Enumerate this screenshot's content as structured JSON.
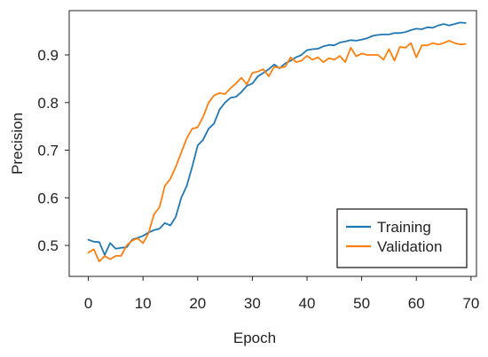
{
  "chart_data": {
    "type": "line",
    "title": "",
    "xlabel": "Epoch",
    "ylabel": "Precision",
    "xlim": [
      -3.5,
      71
    ],
    "ylim": [
      0.435,
      0.993
    ],
    "xticks": [
      0,
      10,
      20,
      30,
      40,
      50,
      60,
      70
    ],
    "yticks": [
      0.5,
      0.6,
      0.7,
      0.8,
      0.9
    ],
    "xtick_labels": [
      "0",
      "10",
      "20",
      "30",
      "40",
      "50",
      "60",
      "70"
    ],
    "ytick_labels": [
      "0.5",
      "0.6",
      "0.7",
      "0.8",
      "0.9"
    ],
    "grid": false,
    "legend_position": "lower-right",
    "x": [
      0,
      1,
      2,
      3,
      4,
      5,
      6,
      7,
      8,
      9,
      10,
      11,
      12,
      13,
      14,
      15,
      16,
      17,
      18,
      19,
      20,
      21,
      22,
      23,
      24,
      25,
      26,
      27,
      28,
      29,
      30,
      31,
      32,
      33,
      34,
      35,
      36,
      37,
      38,
      39,
      40,
      41,
      42,
      43,
      44,
      45,
      46,
      47,
      48,
      49,
      50,
      51,
      52,
      53,
      54,
      55,
      56,
      57,
      58,
      59,
      60,
      61,
      62,
      63,
      64,
      65,
      66,
      67,
      68,
      69
    ],
    "series": [
      {
        "name": "Training",
        "color": "#1f77b4",
        "values": [
          0.512,
          0.508,
          0.507,
          0.48,
          0.505,
          0.493,
          0.495,
          0.496,
          0.512,
          0.516,
          0.52,
          0.527,
          0.532,
          0.535,
          0.547,
          0.542,
          0.56,
          0.6,
          0.625,
          0.665,
          0.71,
          0.722,
          0.745,
          0.756,
          0.785,
          0.8,
          0.81,
          0.812,
          0.822,
          0.835,
          0.84,
          0.855,
          0.862,
          0.87,
          0.88,
          0.872,
          0.882,
          0.888,
          0.895,
          0.9,
          0.91,
          0.912,
          0.913,
          0.918,
          0.921,
          0.92,
          0.926,
          0.928,
          0.931,
          0.93,
          0.932,
          0.935,
          0.94,
          0.942,
          0.943,
          0.943,
          0.946,
          0.946,
          0.948,
          0.952,
          0.955,
          0.954,
          0.958,
          0.957,
          0.962,
          0.965,
          0.962,
          0.965,
          0.968,
          0.967
        ]
      },
      {
        "name": "Validation",
        "color": "#ff7f0e",
        "values": [
          0.485,
          0.492,
          0.466,
          0.478,
          0.471,
          0.478,
          0.478,
          0.5,
          0.51,
          0.515,
          0.505,
          0.525,
          0.565,
          0.58,
          0.625,
          0.64,
          0.665,
          0.695,
          0.725,
          0.745,
          0.748,
          0.77,
          0.8,
          0.815,
          0.82,
          0.818,
          0.83,
          0.84,
          0.852,
          0.838,
          0.862,
          0.865,
          0.87,
          0.855,
          0.875,
          0.873,
          0.875,
          0.895,
          0.885,
          0.888,
          0.898,
          0.89,
          0.895,
          0.885,
          0.893,
          0.89,
          0.898,
          0.885,
          0.915,
          0.897,
          0.903,
          0.9,
          0.9,
          0.9,
          0.89,
          0.912,
          0.888,
          0.917,
          0.915,
          0.925,
          0.895,
          0.92,
          0.92,
          0.925,
          0.922,
          0.925,
          0.93,
          0.925,
          0.922,
          0.923
        ]
      }
    ]
  }
}
